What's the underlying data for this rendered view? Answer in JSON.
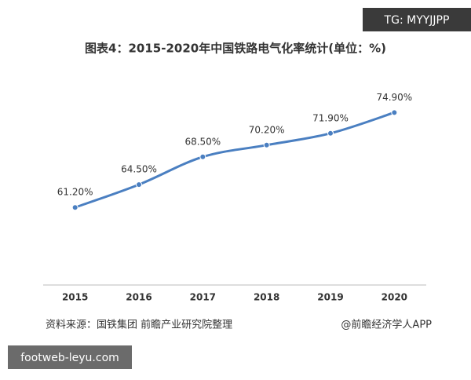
{
  "chart_data": {
    "type": "line",
    "title": "图表4：2015-2020年中国铁路电气化率统计(单位：%)",
    "categories": [
      "2015",
      "2016",
      "2017",
      "2018",
      "2019",
      "2020"
    ],
    "values": [
      61.2,
      64.5,
      68.5,
      70.2,
      71.9,
      74.9
    ],
    "value_labels": [
      "61.20%",
      "64.50%",
      "68.50%",
      "70.20%",
      "71.90%",
      "74.90%"
    ],
    "color": "#4a7fc1",
    "ylim": [
      50,
      78
    ],
    "source": "资料来源：国铁集团 前瞻产业研究院整理",
    "credit": "@前瞻经济学人APP"
  },
  "overlays": {
    "top_right": "TG: MYYJJPP",
    "bottom_left": "footweb-leyu.com"
  }
}
